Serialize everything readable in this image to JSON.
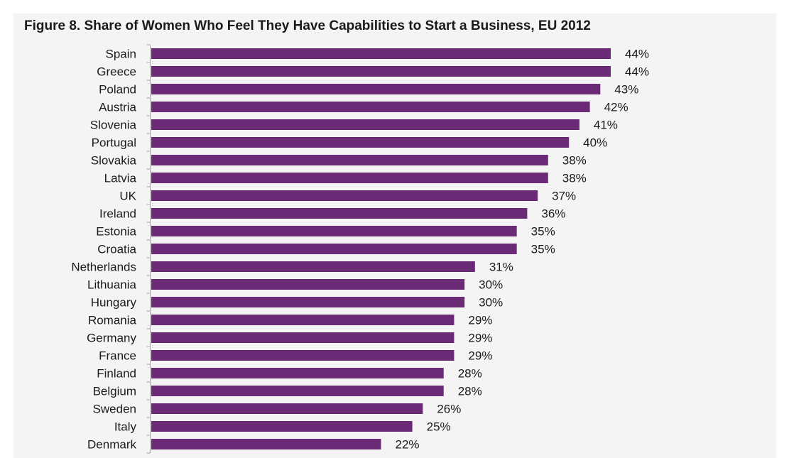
{
  "chart_data": {
    "type": "bar",
    "orientation": "horizontal",
    "title": "Figure 8. Share of Women Who Feel They Have Capabilities to Start a Business, EU 2012",
    "categories": [
      "Spain",
      "Greece",
      "Poland",
      "Austria",
      "Slovenia",
      "Portugal",
      "Slovakia",
      "Latvia",
      "UK",
      "Ireland",
      "Estonia",
      "Croatia",
      "Netherlands",
      "Lithuania",
      "Hungary",
      "Romania",
      "Germany",
      "France",
      "Finland",
      "Belgium",
      "Sweden",
      "Italy",
      "Denmark"
    ],
    "values": [
      44,
      44,
      43,
      42,
      41,
      40,
      38,
      38,
      37,
      36,
      35,
      35,
      31,
      30,
      30,
      29,
      29,
      29,
      28,
      28,
      26,
      25,
      22
    ],
    "value_labels": [
      "44%",
      "44%",
      "43%",
      "42%",
      "41%",
      "40%",
      "38%",
      "38%",
      "37%",
      "36%",
      "35%",
      "35%",
      "31%",
      "30%",
      "30%",
      "29%",
      "29%",
      "29%",
      "28%",
      "28%",
      "26%",
      "25%",
      "22%"
    ],
    "xlim": [
      0,
      50
    ],
    "bar_color": "#6b2a76",
    "grid": false,
    "legend": "none"
  }
}
